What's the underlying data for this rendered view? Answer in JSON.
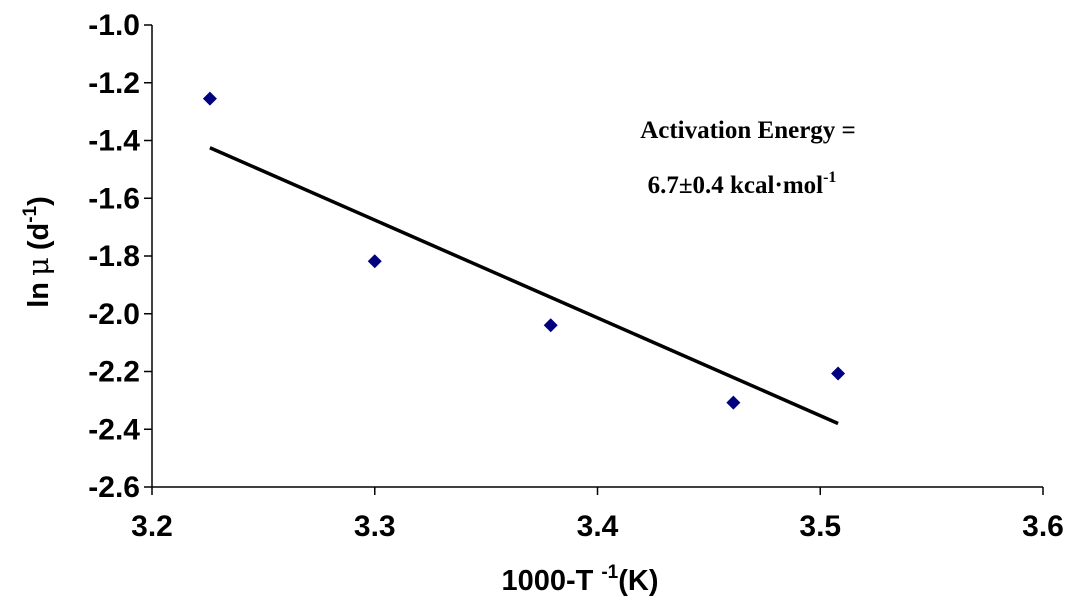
{
  "chart_data": {
    "type": "scatter",
    "title": "",
    "xlabel": "1000-T",
    "xlabel_sup": "-1",
    "xlabel_unit": "(K)",
    "ylabel": "ln",
    "ylabel_symbol": "μ",
    "ylabel_unit_open": "(d",
    "ylabel_unit_sup": "-1",
    "ylabel_unit_close": ")",
    "xlim": [
      3.2,
      3.6
    ],
    "ylim": [
      -2.6,
      -1.0
    ],
    "xticks": [
      "3.2",
      "3.3",
      "3.4",
      "3.5",
      "3.6"
    ],
    "yticks": [
      "-1.0",
      "-1.2",
      "-1.4",
      "-1.6",
      "-1.8",
      "-2.0",
      "-2.2",
      "-2.4",
      "-2.6"
    ],
    "grid": false,
    "marker_color": "#000080",
    "line_color": "#000000",
    "series": [
      {
        "values": [
          {
            "x": 3.226,
            "y": -1.255
          },
          {
            "x": 3.3,
            "y": -1.818
          },
          {
            "x": 3.379,
            "y": -2.04
          },
          {
            "x": 3.461,
            "y": -2.308
          },
          {
            "x": 3.508,
            "y": -2.207
          }
        ]
      }
    ],
    "trendline": {
      "x": [
        3.226,
        3.508
      ],
      "y": [
        -1.425,
        -2.38
      ]
    },
    "annotation": {
      "line1": "Activation Energy =",
      "line2_main": "6.7±0.4 kcal·mol",
      "line2_sup": "-1"
    }
  }
}
